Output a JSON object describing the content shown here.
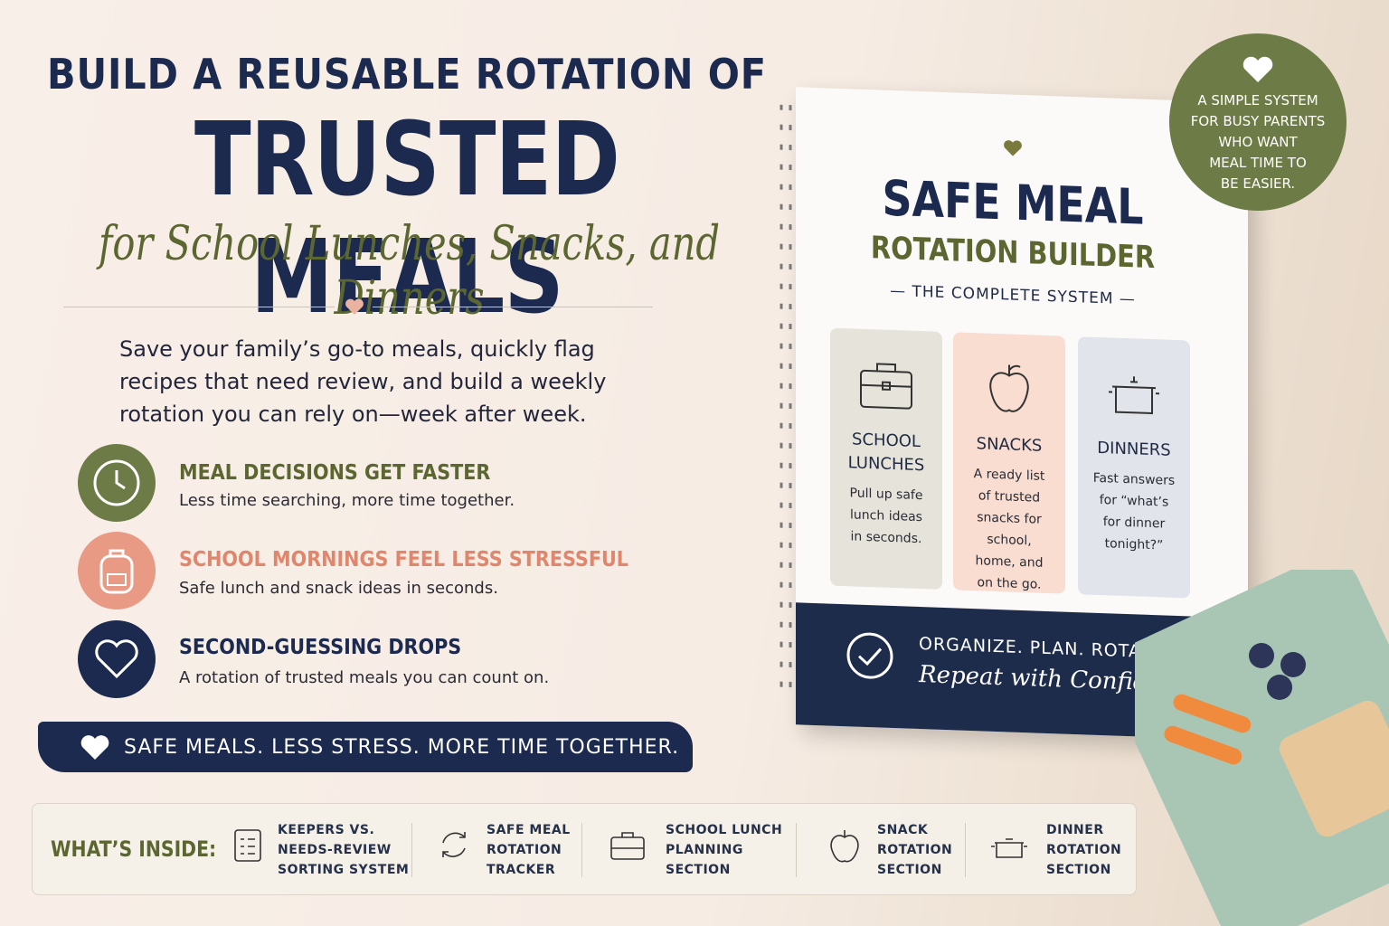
{
  "headline": {
    "line1": "BUILD A REUSABLE ROTATION OF",
    "line2": "TRUSTED MEALS",
    "line3": "for School Lunches, Snacks, and Dinners"
  },
  "intro": "Save your family’s go-to meals, quickly flag recipes that need review, and build a weekly rotation you can rely on—week after week.",
  "benefits": [
    {
      "title": "MEAL DECISIONS GET FASTER",
      "text": "Less time searching, more time together."
    },
    {
      "title": "SCHOOL MORNINGS FEEL LESS STRESSFUL",
      "text": "Safe lunch and snack ideas in seconds."
    },
    {
      "title": "SECOND-GUESSING DROPS",
      "text": "A rotation of trusted meals you can count on."
    }
  ],
  "banner": "SAFE MEALS. LESS STRESS. MORE TIME TOGETHER.",
  "badge": [
    "A SIMPLE SYSTEM",
    "FOR BUSY PARENTS",
    "WHO WANT",
    "MEAL TIME TO",
    "BE EASIER."
  ],
  "book": {
    "title": "SAFE MEAL",
    "subtitle": "ROTATION BUILDER",
    "tagline": "THE COMPLETE SYSTEM",
    "cards": [
      {
        "title": "SCHOOL LUNCHES",
        "text": "Pull up safe lunch ideas in seconds."
      },
      {
        "title": "SNACKS",
        "text": "A ready list of trusted snacks for school, home, and on the go."
      },
      {
        "title": "DINNERS",
        "text": "Fast answers for “what’s for dinner tonight?”"
      }
    ],
    "footer": "ORGANIZE. PLAN. ROTATE.",
    "footer_script": "Repeat with Confidence."
  },
  "inside": {
    "label": "WHAT’S INSIDE:",
    "items": [
      [
        "KEEPERS VS.",
        "NEEDS-REVIEW",
        "SORTING SYSTEM"
      ],
      [
        "SAFE MEAL",
        "ROTATION",
        "TRACKER"
      ],
      [
        "SCHOOL LUNCH",
        "PLANNING",
        "SECTION"
      ],
      [
        "SNACK",
        "ROTATION",
        "SECTION"
      ],
      [
        "DINNER",
        "ROTATION",
        "SECTION"
      ]
    ]
  }
}
